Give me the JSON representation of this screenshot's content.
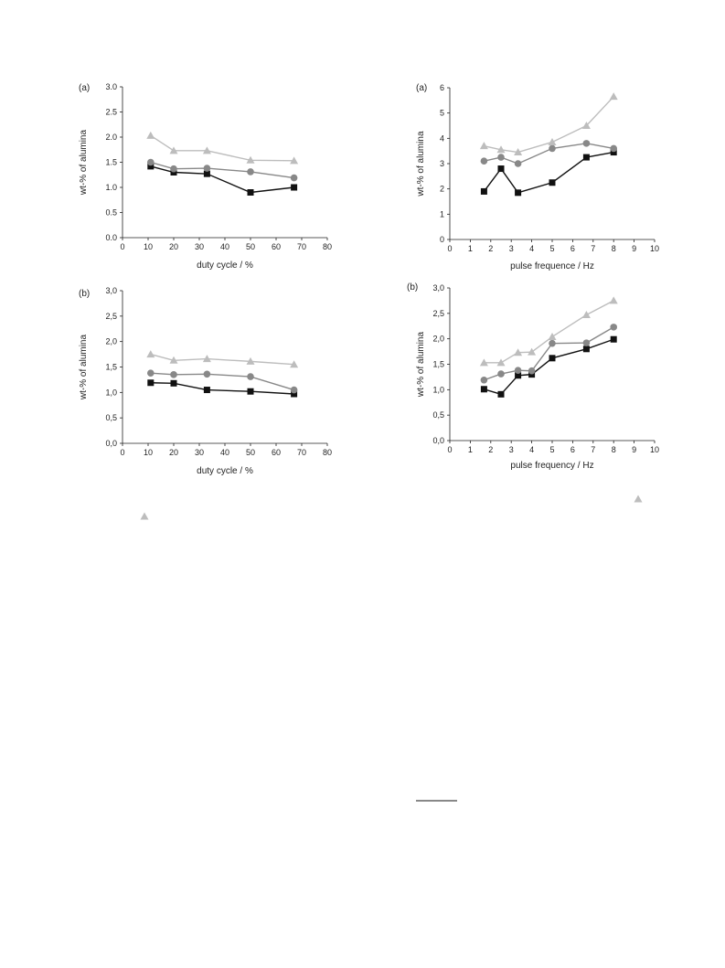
{
  "chart_data": [
    {
      "type": "line",
      "panel_label": "(a)",
      "xlabel": "duty cycle / %",
      "ylabel": "wt-% of alumina",
      "xlim": [
        0,
        80
      ],
      "ylim": [
        0,
        3.0
      ],
      "xticks": [
        "0",
        "10",
        "20",
        "30",
        "40",
        "50",
        "60",
        "70",
        "80"
      ],
      "yticks": [
        "0.0",
        "0.5",
        "1.0",
        "1.5",
        "2.0",
        "2.5",
        "3.0"
      ],
      "x": [
        11,
        20,
        33,
        50,
        67
      ],
      "series": [
        {
          "marker": "square",
          "color": "#111111",
          "values": [
            1.42,
            1.3,
            1.27,
            0.9,
            1.0
          ]
        },
        {
          "marker": "circle",
          "color": "#888888",
          "values": [
            1.5,
            1.37,
            1.38,
            1.31,
            1.19
          ]
        },
        {
          "marker": "triangle",
          "color": "#bdbdbd",
          "values": [
            2.03,
            1.73,
            1.73,
            1.54,
            1.53
          ]
        }
      ]
    },
    {
      "type": "line",
      "panel_label": "(b)",
      "xlabel": "duty cycle / %",
      "ylabel": "wt-% of alumina",
      "xlim": [
        0,
        80
      ],
      "ylim": [
        0,
        3.0
      ],
      "xticks": [
        "0",
        "10",
        "20",
        "30",
        "40",
        "50",
        "60",
        "70",
        "80"
      ],
      "yticks": [
        "0,0",
        "0,5",
        "1,0",
        "1,5",
        "2,0",
        "2,5",
        "3,0"
      ],
      "x": [
        11,
        20,
        33,
        50,
        67
      ],
      "series": [
        {
          "marker": "square",
          "color": "#111111",
          "values": [
            1.19,
            1.18,
            1.05,
            1.02,
            0.97
          ]
        },
        {
          "marker": "circle",
          "color": "#888888",
          "values": [
            1.38,
            1.35,
            1.36,
            1.31,
            1.05
          ]
        },
        {
          "marker": "triangle",
          "color": "#bdbdbd",
          "values": [
            1.75,
            1.63,
            1.66,
            1.61,
            1.55
          ]
        }
      ]
    },
    {
      "type": "line",
      "panel_label": "(a)",
      "xlabel": "pulse frequence / Hz",
      "ylabel": "wt-% of alumina",
      "xlim": [
        0,
        10
      ],
      "ylim": [
        0,
        6
      ],
      "xticks": [
        "0",
        "1",
        "2",
        "3",
        "4",
        "5",
        "6",
        "7",
        "8",
        "9",
        "10"
      ],
      "yticks": [
        "0",
        "1",
        "2",
        "3",
        "4",
        "5",
        "6"
      ],
      "x": [
        1.67,
        2.5,
        3.33,
        5,
        6.67,
        8
      ],
      "series": [
        {
          "marker": "square",
          "color": "#111111",
          "values": [
            1.9,
            2.8,
            1.85,
            2.25,
            3.25,
            3.45
          ]
        },
        {
          "marker": "circle",
          "color": "#888888",
          "values": [
            3.1,
            3.25,
            3.0,
            3.6,
            3.8,
            3.6
          ]
        },
        {
          "marker": "triangle",
          "color": "#bdbdbd",
          "values": [
            3.7,
            3.55,
            3.45,
            3.85,
            4.5,
            5.65
          ]
        }
      ]
    },
    {
      "type": "line",
      "panel_label": "(b)",
      "xlabel": "pulse frequency / Hz",
      "ylabel": "wt-% of alumina",
      "xlim": [
        0,
        10
      ],
      "ylim": [
        0,
        3.0
      ],
      "xticks": [
        "0",
        "1",
        "2",
        "3",
        "4",
        "5",
        "6",
        "7",
        "8",
        "9",
        "10"
      ],
      "yticks": [
        "0,0",
        "0,5",
        "1,0",
        "1,5",
        "2,0",
        "2,5",
        "3,0"
      ],
      "x": [
        1.67,
        2.5,
        3.33,
        4,
        5,
        6.67,
        8
      ],
      "series": [
        {
          "marker": "square",
          "color": "#111111",
          "values": [
            1.01,
            0.91,
            1.28,
            1.3,
            1.62,
            1.8,
            1.99
          ]
        },
        {
          "marker": "circle",
          "color": "#888888",
          "values": [
            1.19,
            1.31,
            1.38,
            1.37,
            1.91,
            1.92,
            2.23
          ]
        },
        {
          "marker": "triangle",
          "color": "#bdbdbd",
          "values": [
            1.53,
            1.53,
            1.73,
            1.74,
            2.04,
            2.47,
            2.75
          ]
        }
      ]
    }
  ],
  "stray_markers": [
    {
      "marker": "triangle",
      "color": "#bdbdbd"
    },
    {
      "marker": "triangle",
      "color": "#bdbdbd"
    }
  ]
}
